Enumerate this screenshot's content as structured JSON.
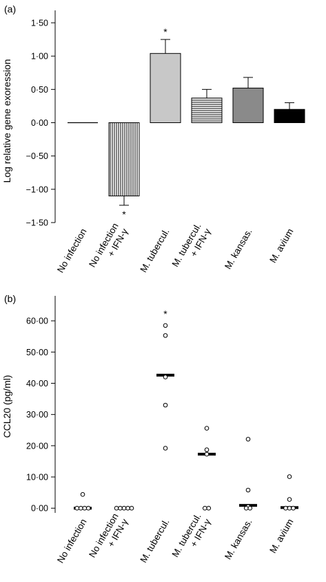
{
  "chart_data": [
    {
      "panel_label": "(a)",
      "type": "bar",
      "ylabel": "Log relative gene exoression",
      "ylim": [
        -1.5,
        1.5
      ],
      "yticks": [
        "1·50",
        "1·00",
        "0·50",
        "0·00",
        "−0·50",
        "−1·00",
        "−1·50"
      ],
      "yticks_values": [
        1.5,
        1.0,
        0.5,
        0.0,
        -0.5,
        -1.0,
        -1.5
      ],
      "categories": [
        [
          "No infection"
        ],
        [
          "No infection",
          "+ IFN-γ"
        ],
        [
          "M. tubercul."
        ],
        [
          "M. tubercul.",
          "+ IFN-γ"
        ],
        [
          "M. kansas."
        ],
        [
          "M. avium"
        ]
      ],
      "values": [
        0.0,
        -1.1,
        1.04,
        0.37,
        0.52,
        0.2
      ],
      "errors": [
        0.0,
        0.14,
        0.21,
        0.13,
        0.16,
        0.1
      ],
      "fills": [
        "none",
        "vertical-lines",
        "#c8c8c8",
        "horizontal-lines",
        "#8a8a8a",
        "#000000"
      ],
      "significance": [
        "",
        "*",
        "*",
        "",
        "",
        ""
      ],
      "grid": false,
      "legend": "none"
    },
    {
      "panel_label": "(b)",
      "type": "scatter",
      "ylabel": "CCL20 (pg/ml)",
      "ylim": [
        -1.5,
        68
      ],
      "yticks": [
        "60·00",
        "50·00",
        "40·00",
        "30·00",
        "20·00",
        "10·00",
        "0·00"
      ],
      "yticks_values": [
        60,
        50,
        40,
        30,
        20,
        10,
        0
      ],
      "categories": [
        [
          "No infection"
        ],
        [
          "No infection",
          "+ IFN-γ"
        ],
        [
          "M. tubercul."
        ],
        [
          "M. tubercul.",
          "+ IFN-γ"
        ],
        [
          "M. kansas."
        ],
        [
          "M. avium"
        ]
      ],
      "points": [
        [
          4.4,
          0,
          0,
          0,
          0
        ],
        [
          0,
          0,
          0,
          0,
          0
        ],
        [
          58.5,
          55.3,
          42.0,
          33.0,
          19.2
        ],
        [
          25.6,
          18.7,
          17.3,
          0,
          0
        ],
        [
          22.1,
          5.8,
          0.5,
          0,
          0
        ],
        [
          10.1,
          2.8,
          0,
          0,
          0
        ]
      ],
      "medians": [
        0,
        0,
        42.6,
        17.3,
        0.9,
        0.2
      ],
      "significance": [
        "",
        "",
        "*",
        "",
        "",
        ""
      ],
      "grid": false,
      "legend": "none"
    }
  ]
}
